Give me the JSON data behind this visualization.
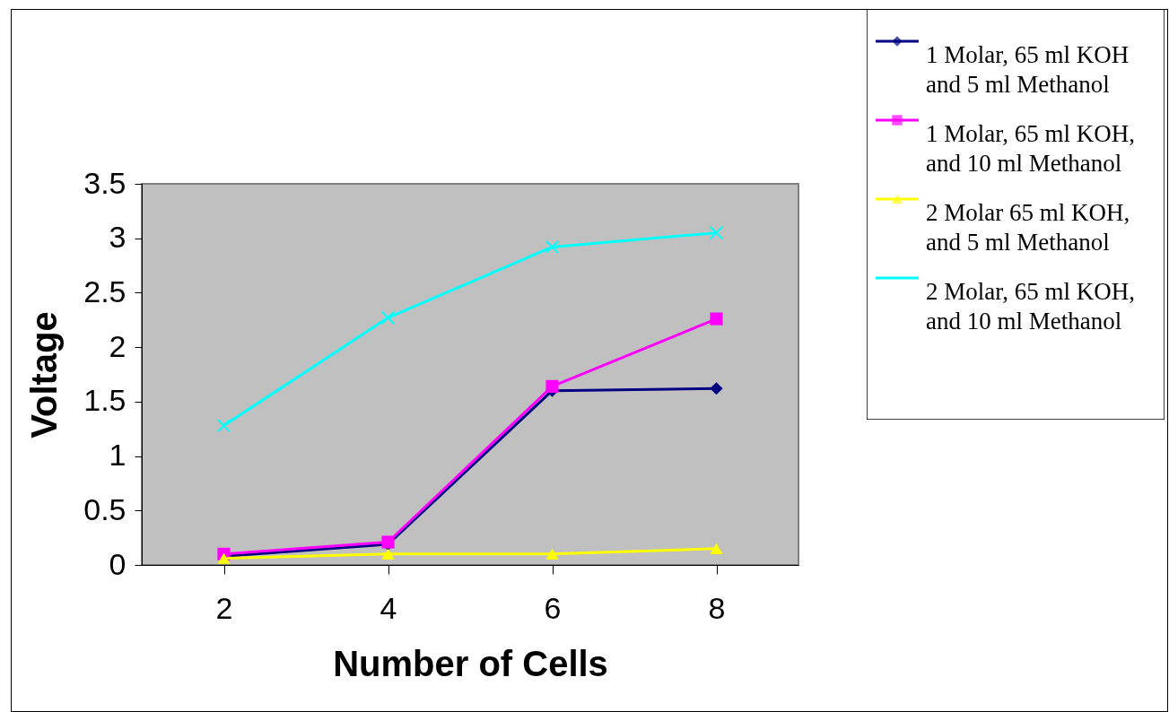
{
  "chart_data": {
    "type": "line",
    "xlabel": "Number of Cells",
    "ylabel": "Voltage",
    "categories": [
      "2",
      "4",
      "6",
      "8"
    ],
    "series": [
      {
        "name": "1 Molar, 65 ml KOH and 5 ml Methanol",
        "color": "#000080",
        "marker": "diamond",
        "values": [
          0.08,
          0.19,
          1.6,
          1.62
        ]
      },
      {
        "name": "1 Molar, 65 ml KOH, and 10 ml Methanol",
        "color": "#ff00ff",
        "marker": "square",
        "values": [
          0.1,
          0.21,
          1.64,
          2.26
        ]
      },
      {
        "name": "2 Molar 65 ml KOH, and 5 ml Methanol",
        "color": "#ffff00",
        "marker": "triangle",
        "values": [
          0.06,
          0.1,
          0.1,
          0.15
        ]
      },
      {
        "name": "2 Molar, 65 ml KOH, and 10 ml Methanol",
        "color": "#00ffff",
        "marker": "cross",
        "values": [
          1.28,
          2.27,
          2.92,
          3.05
        ]
      }
    ],
    "ylim": [
      0,
      3.5
    ],
    "yticks": [
      0,
      0.5,
      1,
      1.5,
      2,
      2.5,
      3,
      3.5
    ],
    "grid": false,
    "legend": "top right"
  }
}
